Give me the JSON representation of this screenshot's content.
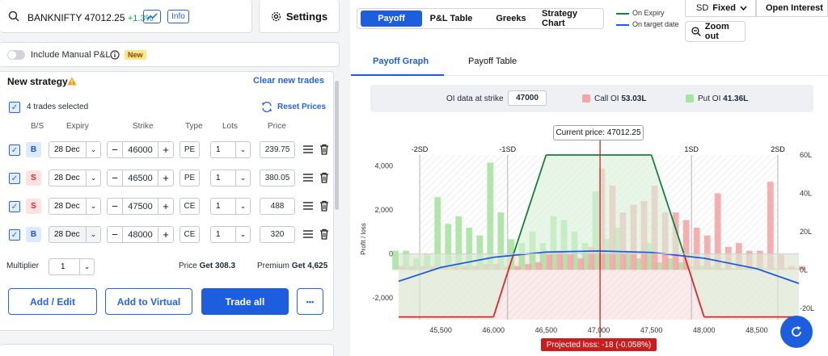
{
  "symbol": {
    "name": "BANKNIFTY 47012.25",
    "change": "+1.3%",
    "info_label": "Info"
  },
  "settings": {
    "label": "Settings"
  },
  "manual_pl": {
    "label": "Include Manual P&L",
    "badge": "New"
  },
  "strategy": {
    "title": "New strategy",
    "clear_label": "Clear new trades",
    "selected_text": "4 trades selected",
    "reset_label": "Reset Prices",
    "headers": {
      "bs": "B/S",
      "expiry": "Expiry",
      "strike": "Strike",
      "type": "Type",
      "lots": "Lots",
      "price": "Price"
    },
    "trades": [
      {
        "side": "B",
        "expiry": "28 Dec",
        "strike": "46000",
        "type": "PE",
        "lots": "1",
        "price": "239.75"
      },
      {
        "side": "S",
        "expiry": "28 Dec",
        "strike": "46500",
        "type": "PE",
        "lots": "1",
        "price": "380.05"
      },
      {
        "side": "S",
        "expiry": "28 Dec",
        "strike": "47500",
        "type": "CE",
        "lots": "1",
        "price": "488"
      },
      {
        "side": "B",
        "expiry": "28 Dec",
        "strike": "48000",
        "type": "CE",
        "lots": "1",
        "price": "320"
      }
    ],
    "multiplier_label": "Multiplier",
    "multiplier_value": "1",
    "price_label": "Price",
    "price_value": "Get 308.3",
    "premium_label": "Premium",
    "premium_value": "Get 4,625",
    "buttons": {
      "add_edit": "Add / Edit",
      "add_virtual": "Add to Virtual",
      "trade_all": "Trade all",
      "more": "•••"
    }
  },
  "tabs": [
    "Payoff",
    "P&L Table",
    "Greeks",
    "Strategy Chart"
  ],
  "legend": {
    "expiry": "On Expiry",
    "target": "On target date",
    "expiry_color": "#15803d",
    "target_color": "#1d5ede"
  },
  "sd_select": {
    "prefix": "SD",
    "value": "Fixed"
  },
  "oi_select": {
    "value": "Open Interest"
  },
  "zoom": {
    "label": "Zoom out"
  },
  "subtabs": {
    "graph": "Payoff Graph",
    "table": "Payoff Table"
  },
  "oi_bar": {
    "label": "OI data at strike",
    "strike": "47000",
    "call_label": "Call OI",
    "call_value": "53.03L",
    "put_label": "Put OI",
    "put_value": "41.36L",
    "call_color": "#f4a6a6",
    "put_color": "#a7e3a1"
  },
  "chart": {
    "current_price_label": "Current price: 47012.25",
    "projected_loss": "Projected loss: -18 (-0.058%)",
    "ylabel": "Profit / loss",
    "sd_labels": [
      "-2SD",
      "-1SD",
      "1SD",
      "2SD"
    ]
  },
  "chart_data": {
    "type": "line",
    "x_ticks": [
      "45,500",
      "46,000",
      "46,500",
      "47,000",
      "47,500",
      "48,000",
      "48,500"
    ],
    "y_ticks_left": [
      "4,000",
      "2,000",
      "0",
      "-2,000"
    ],
    "y_ticks_right": [
      "60L",
      "40L",
      "20L",
      "0L",
      "-20L"
    ],
    "xlim": [
      45100,
      48900
    ],
    "ylim": [
      -3000,
      4500
    ],
    "oi_ylim": [
      -26,
      60
    ],
    "current_price": 47012.25,
    "series": [
      {
        "name": "On Expiry",
        "x": [
          45100,
          46000,
          46500,
          47500,
          48000,
          48900
        ],
        "values": [
          -2875,
          -2875,
          4625,
          4625,
          -2875,
          -2875
        ]
      },
      {
        "name": "On target date",
        "x": [
          45100,
          45500,
          46000,
          46500,
          47000,
          47500,
          48000,
          48500,
          48900
        ],
        "values": [
          -1250,
          -620,
          -160,
          80,
          130,
          60,
          -200,
          -680,
          -1350
        ]
      }
    ],
    "call_oi": {
      "x": [
        45100,
        45200,
        45300,
        45400,
        45500,
        45600,
        45700,
        45800,
        45900,
        46000,
        46100,
        46200,
        46300,
        46400,
        46500,
        46600,
        46700,
        46800,
        46900,
        47000,
        47100,
        47200,
        47300,
        47400,
        47500,
        47600,
        47700,
        47800,
        47900,
        48000,
        48100,
        48200,
        48300,
        48400,
        48500,
        48600,
        48700,
        48800,
        48900
      ],
      "values": [
        2,
        2,
        2,
        2,
        2,
        2,
        2,
        2,
        3,
        3,
        2,
        2,
        3,
        4,
        8,
        10,
        8,
        6,
        12,
        53,
        44,
        30,
        34,
        36,
        44,
        30,
        30,
        26,
        22,
        18,
        40,
        12,
        14,
        10,
        10,
        46,
        8,
        2,
        2
      ]
    },
    "put_oi": {
      "x": [
        45100,
        45200,
        45300,
        45400,
        45500,
        45600,
        45700,
        45800,
        45900,
        46000,
        46100,
        46200,
        46300,
        46400,
        46500,
        46600,
        46700,
        46800,
        46900,
        47000,
        47100,
        47200,
        47300,
        47400,
        47500,
        47600,
        47700,
        47800,
        47900,
        48000,
        48100,
        48200,
        48300,
        48400,
        48500,
        48600,
        48700,
        48800,
        48900
      ],
      "values": [
        10,
        10,
        6,
        8,
        38,
        24,
        28,
        22,
        18,
        56,
        30,
        16,
        14,
        20,
        14,
        28,
        26,
        20,
        14,
        41,
        16,
        22,
        10,
        6,
        14,
        4,
        6,
        4,
        2,
        2,
        2,
        1,
        1,
        1,
        1,
        1,
        1,
        1,
        1
      ]
    }
  }
}
